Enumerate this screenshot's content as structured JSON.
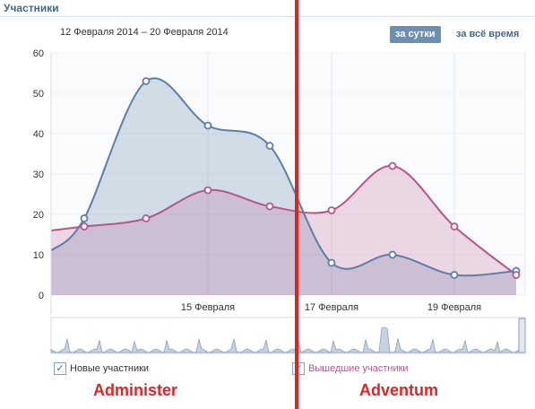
{
  "header": {
    "title": "Участники"
  },
  "date_range": "12 Февраля 2014 – 20 Февраля 2014",
  "period_buttons": {
    "day": "за сутки",
    "all_time": "за всё время"
  },
  "legend": [
    {
      "label": "Новые участники",
      "checked": true,
      "color": "#5b7fa6"
    },
    {
      "label": "Вышедшие участники",
      "checked": true,
      "color": "#b5568e"
    }
  ],
  "annotations": {
    "left": "Administer",
    "right": "Adventum"
  },
  "colors": {
    "blue": "#5b7fa6",
    "pink": "#b5568e",
    "accent_red": "#e02424"
  },
  "chart_data": {
    "type": "area",
    "ylim": [
      0,
      60
    ],
    "yticks": [
      0,
      10,
      20,
      30,
      40,
      50,
      60
    ],
    "x_labels": [
      {
        "index": 2,
        "label": "15 Февраля"
      },
      {
        "index": 4,
        "label": "17 Февраля"
      },
      {
        "index": 6,
        "label": "19 Февраля"
      }
    ],
    "series": [
      {
        "name": "Новые участники",
        "values": [
          19,
          53,
          42,
          37,
          8,
          10,
          5,
          6
        ]
      },
      {
        "name": "Вышедшие участники",
        "values": [
          17,
          19,
          26,
          22,
          21,
          32,
          17,
          5
        ]
      }
    ]
  }
}
